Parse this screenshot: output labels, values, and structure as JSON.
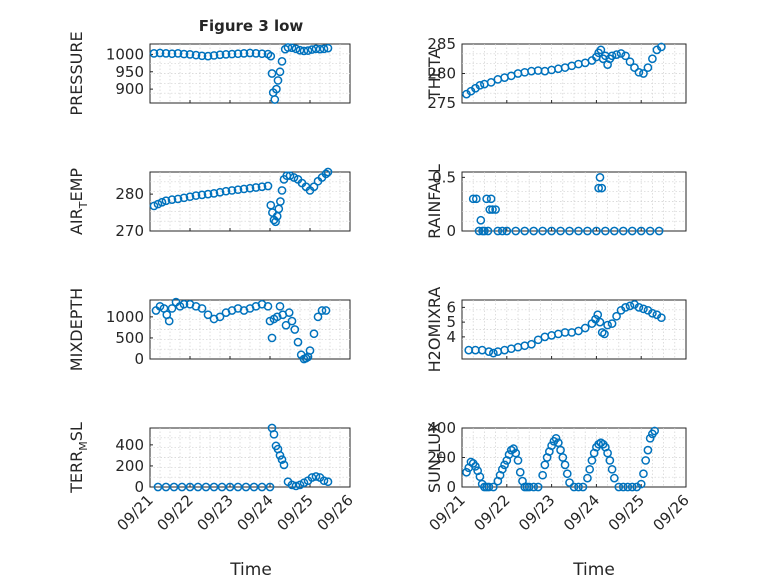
{
  "figure_title": "Figure 3 low",
  "colors": {
    "marker": "#0072BD",
    "axis": "#262626",
    "grid": "#d0d0d0",
    "background": "#ffffff"
  },
  "chart_data": [
    {
      "type": "scatter",
      "position": "top-left",
      "ylabel": "PRESSURE",
      "ylim": [
        860,
        1030
      ],
      "yticks": [
        900,
        950,
        1000
      ],
      "xlim": [
        0,
        5
      ],
      "xticklabels": [
        "09/21",
        "09/22",
        "09/23",
        "09/24",
        "09/25",
        "09/26"
      ],
      "x": [
        0.1,
        0.25,
        0.4,
        0.55,
        0.7,
        0.85,
        1.0,
        1.15,
        1.3,
        1.45,
        1.6,
        1.75,
        1.9,
        2.05,
        2.2,
        2.35,
        2.5,
        2.65,
        2.8,
        2.95,
        3.02,
        3.05,
        3.08,
        3.12,
        3.16,
        3.2,
        3.25,
        3.3,
        3.38,
        3.45,
        3.55,
        3.65,
        3.75,
        3.85,
        3.95,
        4.05,
        4.15,
        4.25,
        4.35,
        4.45
      ],
      "y": [
        1003,
        1004,
        1003,
        1002,
        1003,
        1001,
        1000,
        998,
        996,
        995,
        997,
        999,
        1000,
        1001,
        1002,
        1003,
        1004,
        1003,
        1002,
        1001,
        995,
        945,
        890,
        870,
        900,
        925,
        950,
        980,
        1015,
        1020,
        1019,
        1016,
        1012,
        1010,
        1011,
        1014,
        1016,
        1015,
        1016,
        1018
      ]
    },
    {
      "type": "scatter",
      "position": "top-right",
      "ylabel": "THETA",
      "ylim": [
        275,
        285
      ],
      "yticks": [
        275,
        280,
        285
      ],
      "xlim": [
        0,
        5
      ],
      "xticklabels": [
        "09/21",
        "09/22",
        "09/23",
        "09/24",
        "09/25",
        "09/26"
      ],
      "x": [
        0.1,
        0.2,
        0.3,
        0.4,
        0.5,
        0.65,
        0.8,
        0.95,
        1.1,
        1.25,
        1.4,
        1.55,
        1.7,
        1.85,
        2.0,
        2.15,
        2.3,
        2.45,
        2.6,
        2.75,
        2.9,
        3.0,
        3.05,
        3.1,
        3.15,
        3.2,
        3.25,
        3.3,
        3.35,
        3.45,
        3.55,
        3.65,
        3.75,
        3.85,
        3.95,
        4.05,
        4.15,
        4.25,
        4.35,
        4.45
      ],
      "y": [
        276.5,
        277,
        277.5,
        278,
        278.2,
        278.5,
        279,
        279.3,
        279.6,
        280,
        280.2,
        280.4,
        280.5,
        280.4,
        280.6,
        280.8,
        281,
        281.3,
        281.6,
        281.8,
        282.2,
        282.8,
        283.5,
        284,
        282.5,
        283,
        281.5,
        282.5,
        283,
        283.2,
        283.4,
        283,
        282,
        281,
        280.2,
        280,
        281,
        282.5,
        284,
        284.5
      ]
    },
    {
      "type": "scatter",
      "position": "second-left",
      "ylabel": "AIR_TEMP",
      "ylim": [
        270,
        286
      ],
      "yticks": [
        270,
        280
      ],
      "xlim": [
        0,
        5
      ],
      "xticklabels": [
        "09/21",
        "09/22",
        "09/23",
        "09/24",
        "09/25",
        "09/26"
      ],
      "x": [
        0.1,
        0.2,
        0.3,
        0.4,
        0.55,
        0.7,
        0.85,
        1.0,
        1.15,
        1.3,
        1.45,
        1.6,
        1.75,
        1.9,
        2.05,
        2.2,
        2.35,
        2.5,
        2.65,
        2.8,
        2.95,
        3.02,
        3.06,
        3.1,
        3.14,
        3.18,
        3.22,
        3.26,
        3.3,
        3.35,
        3.42,
        3.5,
        3.6,
        3.7,
        3.8,
        3.9,
        4.0,
        4.1,
        4.2,
        4.3,
        4.4,
        4.45
      ],
      "y": [
        276.8,
        277.3,
        277.8,
        278.2,
        278.5,
        278.7,
        279,
        279.3,
        279.6,
        279.8,
        280,
        280.2,
        280.5,
        280.8,
        281,
        281.2,
        281.4,
        281.6,
        281.8,
        282,
        282.2,
        277,
        275,
        273,
        272.5,
        274,
        276,
        278,
        281,
        284,
        285,
        285,
        284.5,
        284,
        283,
        282,
        281,
        282,
        283.5,
        284.5,
        285.5,
        286
      ]
    },
    {
      "type": "scatter",
      "position": "second-right",
      "ylabel": "RAINFALL",
      "ylim": [
        0,
        0.55
      ],
      "yticks": [
        0,
        0.5
      ],
      "xlim": [
        0,
        5
      ],
      "xticklabels": [
        "09/21",
        "09/22",
        "09/23",
        "09/24",
        "09/25",
        "09/26"
      ],
      "x": [
        0.25,
        0.32,
        0.38,
        0.42,
        0.46,
        0.5,
        0.55,
        0.58,
        0.62,
        0.65,
        0.68,
        0.75,
        0.8,
        0.9,
        1.0,
        1.2,
        1.4,
        1.6,
        1.8,
        2.0,
        2.2,
        2.4,
        2.6,
        2.8,
        3.0,
        3.05,
        3.08,
        3.12,
        3.2,
        3.4,
        3.6,
        3.8,
        4.0,
        4.2,
        4.4
      ],
      "y": [
        0.3,
        0.3,
        0,
        0.1,
        0,
        0,
        0.3,
        0,
        0.2,
        0.3,
        0.2,
        0.2,
        0,
        0,
        0,
        0,
        0,
        0,
        0,
        0,
        0,
        0,
        0,
        0,
        0,
        0.4,
        0.5,
        0.4,
        0,
        0,
        0,
        0,
        0,
        0,
        0
      ]
    },
    {
      "type": "scatter",
      "position": "third-left",
      "ylabel": "MIXDEPTH",
      "ylim": [
        0,
        1400
      ],
      "yticks": [
        0,
        500,
        1000
      ],
      "xlim": [
        0,
        5
      ],
      "xticklabels": [
        "09/21",
        "09/22",
        "09/23",
        "09/24",
        "09/25",
        "09/26"
      ],
      "x": [
        0.15,
        0.25,
        0.35,
        0.42,
        0.48,
        0.55,
        0.65,
        0.75,
        0.85,
        1.0,
        1.15,
        1.3,
        1.45,
        1.6,
        1.75,
        1.9,
        2.05,
        2.2,
        2.35,
        2.5,
        2.65,
        2.8,
        2.95,
        3.0,
        3.05,
        3.1,
        3.18,
        3.25,
        3.32,
        3.4,
        3.48,
        3.55,
        3.62,
        3.7,
        3.78,
        3.85,
        3.9,
        3.95,
        4.0,
        4.1,
        4.2,
        4.3,
        4.4
      ],
      "y": [
        1150,
        1250,
        1200,
        1050,
        900,
        1200,
        1350,
        1250,
        1300,
        1300,
        1250,
        1200,
        1050,
        950,
        1000,
        1100,
        1150,
        1200,
        1150,
        1200,
        1250,
        1300,
        1250,
        900,
        500,
        950,
        1000,
        1250,
        1050,
        800,
        1100,
        900,
        700,
        400,
        100,
        0,
        20,
        50,
        200,
        600,
        1000,
        1150,
        1150
      ]
    },
    {
      "type": "scatter",
      "position": "third-right",
      "ylabel": "H2OMIXRA",
      "ylim": [
        2.5,
        6.5
      ],
      "yticks": [
        4,
        5,
        6
      ],
      "xlim": [
        0,
        5
      ],
      "xticklabels": [
        "09/21",
        "09/22",
        "09/23",
        "09/24",
        "09/25",
        "09/26"
      ],
      "x": [
        0.15,
        0.3,
        0.45,
        0.6,
        0.7,
        0.8,
        0.95,
        1.1,
        1.25,
        1.4,
        1.55,
        1.7,
        1.85,
        2.0,
        2.15,
        2.3,
        2.45,
        2.6,
        2.75,
        2.9,
        2.98,
        3.03,
        3.08,
        3.13,
        3.18,
        3.25,
        3.35,
        3.45,
        3.55,
        3.65,
        3.75,
        3.85,
        3.95,
        4.05,
        4.15,
        4.25,
        4.35,
        4.45
      ],
      "y": [
        3.1,
        3.1,
        3.1,
        3.0,
        2.9,
        3.0,
        3.1,
        3.2,
        3.3,
        3.4,
        3.5,
        3.8,
        4.0,
        4.1,
        4.2,
        4.3,
        4.3,
        4.4,
        4.6,
        4.9,
        5.2,
        5.5,
        5.0,
        4.3,
        4.2,
        4.8,
        4.9,
        5.4,
        5.8,
        6.0,
        6.1,
        6.2,
        6.0,
        5.9,
        5.8,
        5.6,
        5.5,
        5.3
      ]
    },
    {
      "type": "scatter",
      "position": "bottom-left",
      "ylabel": "TERR_MSL",
      "ylim": [
        0,
        560
      ],
      "yticks": [
        0,
        200,
        400
      ],
      "xlim": [
        0,
        5
      ],
      "xticklabels": [
        "09/21",
        "09/22",
        "09/23",
        "09/24",
        "09/25",
        "09/26"
      ],
      "x": [
        0.2,
        0.4,
        0.6,
        0.8,
        1.0,
        1.2,
        1.4,
        1.6,
        1.8,
        2.0,
        2.2,
        2.4,
        2.6,
        2.8,
        3.0,
        3.05,
        3.1,
        3.15,
        3.2,
        3.25,
        3.3,
        3.35,
        3.45,
        3.55,
        3.65,
        3.75,
        3.85,
        3.95,
        4.05,
        4.15,
        4.25,
        4.35,
        4.45
      ],
      "y": [
        0,
        0,
        0,
        0,
        0,
        0,
        0,
        0,
        0,
        0,
        0,
        0,
        0,
        0,
        0,
        560,
        500,
        390,
        360,
        300,
        260,
        210,
        50,
        20,
        10,
        20,
        40,
        60,
        90,
        100,
        90,
        60,
        50
      ]
    },
    {
      "type": "scatter",
      "position": "bottom-right",
      "ylabel": "SUN_FLUX",
      "ylim": [
        0,
        400
      ],
      "yticks": [
        0,
        200,
        400
      ],
      "xlim": [
        0,
        5
      ],
      "xticklabels": [
        "09/21",
        "09/22",
        "09/23",
        "09/24",
        "09/25",
        "09/26"
      ],
      "xlabel": "Time",
      "x": [
        0.1,
        0.15,
        0.2,
        0.25,
        0.3,
        0.35,
        0.4,
        0.45,
        0.5,
        0.55,
        0.6,
        0.7,
        0.8,
        0.85,
        0.9,
        0.95,
        1.0,
        1.05,
        1.1,
        1.15,
        1.2,
        1.25,
        1.3,
        1.35,
        1.4,
        1.45,
        1.5,
        1.6,
        1.7,
        1.8,
        1.85,
        1.9,
        1.95,
        2.0,
        2.05,
        2.1,
        2.15,
        2.2,
        2.25,
        2.3,
        2.35,
        2.4,
        2.5,
        2.6,
        2.7,
        2.8,
        2.85,
        2.9,
        2.95,
        3.0,
        3.05,
        3.1,
        3.15,
        3.2,
        3.25,
        3.3,
        3.35,
        3.4,
        3.5,
        3.6,
        3.7,
        3.8,
        3.9,
        4.0,
        4.05,
        4.1,
        4.15,
        4.2,
        4.25,
        4.3
      ],
      "y": [
        100,
        130,
        170,
        160,
        140,
        110,
        70,
        20,
        0,
        0,
        0,
        0,
        40,
        80,
        120,
        150,
        180,
        220,
        250,
        260,
        230,
        180,
        100,
        40,
        0,
        0,
        0,
        0,
        0,
        80,
        150,
        200,
        240,
        280,
        310,
        330,
        300,
        250,
        200,
        150,
        90,
        30,
        0,
        0,
        0,
        60,
        120,
        180,
        230,
        270,
        290,
        300,
        290,
        270,
        230,
        180,
        120,
        60,
        0,
        0,
        0,
        0,
        0,
        20,
        90,
        180,
        250,
        330,
        360,
        380
      ]
    }
  ]
}
